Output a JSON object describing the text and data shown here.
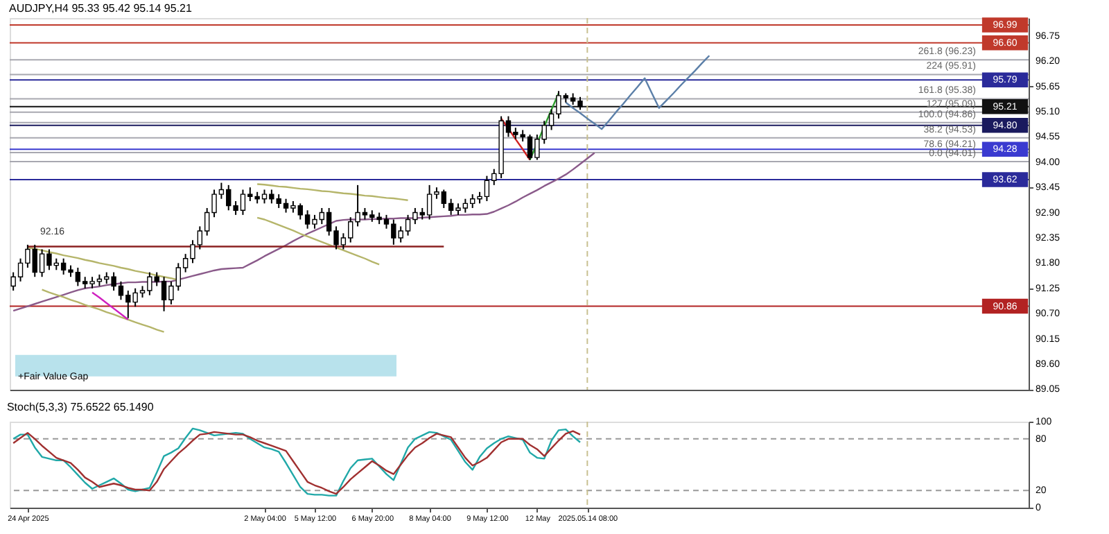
{
  "chart_data": [
    {
      "type": "candlestick",
      "title": "AUDJPY,H4  95.33 95.42 95.14 95.21",
      "categories": [
        null,
        null,
        null,
        null,
        null,
        null,
        null,
        null,
        null,
        null,
        null,
        null,
        null,
        null,
        null,
        null,
        null,
        null,
        null,
        null,
        null,
        null,
        null,
        null,
        null,
        null,
        null,
        null,
        null,
        null,
        null,
        null,
        null,
        null,
        null,
        null,
        null,
        null,
        null,
        null,
        null,
        null,
        null,
        null,
        null,
        null,
        null,
        null,
        null,
        null,
        null,
        null,
        null,
        null,
        null,
        null,
        null,
        null,
        null,
        null,
        null,
        null,
        null,
        null,
        null,
        null,
        null,
        null,
        null,
        null,
        null,
        null,
        null,
        null,
        null,
        null,
        null,
        null,
        null,
        null,
        null,
        null,
        null,
        null,
        null,
        null,
        null,
        null,
        null,
        null,
        null,
        null,
        null,
        null,
        null,
        null,
        null,
        null
      ],
      "ohlc": [
        [
          91.3,
          91.6,
          91.2,
          91.5
        ],
        [
          91.5,
          91.9,
          91.4,
          91.8
        ],
        [
          91.8,
          92.2,
          91.7,
          92.1
        ],
        [
          92.1,
          92.2,
          91.5,
          91.6
        ],
        [
          91.6,
          92.1,
          91.5,
          92.0
        ],
        [
          92.0,
          92.1,
          91.65,
          91.75
        ],
        [
          91.75,
          91.9,
          91.65,
          91.8
        ],
        [
          91.8,
          91.9,
          91.55,
          91.65
        ],
        [
          91.65,
          91.75,
          91.5,
          91.6
        ],
        [
          91.6,
          91.7,
          91.3,
          91.4
        ],
        [
          91.4,
          91.5,
          91.25,
          91.35
        ],
        [
          91.35,
          91.5,
          91.25,
          91.4
        ],
        [
          91.4,
          91.55,
          91.3,
          91.45
        ],
        [
          91.45,
          91.6,
          91.35,
          91.5
        ],
        [
          91.5,
          91.6,
          91.2,
          91.3
        ],
        [
          91.3,
          91.4,
          91.0,
          91.1
        ],
        [
          91.1,
          91.2,
          90.6,
          90.95
        ],
        [
          90.95,
          91.25,
          90.85,
          91.15
        ],
        [
          91.15,
          91.3,
          91.05,
          91.2
        ],
        [
          91.2,
          91.6,
          91.1,
          91.5
        ],
        [
          91.5,
          91.6,
          91.3,
          91.4
        ],
        [
          91.4,
          91.5,
          90.75,
          91.0
        ],
        [
          91.0,
          91.4,
          90.9,
          91.3
        ],
        [
          91.3,
          91.8,
          91.2,
          91.7
        ],
        [
          91.7,
          92.0,
          91.6,
          91.9
        ],
        [
          91.9,
          92.3,
          91.8,
          92.2
        ],
        [
          92.2,
          92.6,
          92.1,
          92.5
        ],
        [
          92.5,
          93.0,
          92.4,
          92.9
        ],
        [
          92.9,
          93.4,
          92.8,
          93.3
        ],
        [
          93.3,
          93.55,
          93.2,
          93.4
        ],
        [
          93.4,
          93.5,
          92.95,
          93.05
        ],
        [
          93.05,
          93.15,
          92.85,
          92.95
        ],
        [
          92.95,
          93.4,
          92.85,
          93.3
        ],
        [
          93.3,
          93.45,
          93.15,
          93.25
        ],
        [
          93.25,
          93.35,
          93.1,
          93.2
        ],
        [
          93.2,
          93.4,
          93.1,
          93.3
        ],
        [
          93.3,
          93.4,
          93.1,
          93.2
        ],
        [
          93.2,
          93.3,
          93.0,
          93.1
        ],
        [
          93.1,
          93.2,
          92.9,
          93.0
        ],
        [
          93.0,
          93.15,
          92.9,
          93.05
        ],
        [
          93.05,
          93.1,
          92.75,
          92.85
        ],
        [
          92.85,
          92.95,
          92.55,
          92.65
        ],
        [
          92.65,
          92.85,
          92.55,
          92.75
        ],
        [
          92.75,
          93.0,
          92.65,
          92.9
        ],
        [
          92.9,
          93.0,
          92.4,
          92.5
        ],
        [
          92.5,
          92.6,
          92.1,
          92.2
        ],
        [
          92.2,
          92.45,
          92.1,
          92.35
        ],
        [
          92.35,
          92.8,
          92.25,
          92.7
        ],
        [
          92.7,
          93.5,
          92.6,
          92.9
        ],
        [
          92.9,
          93.0,
          92.75,
          92.85
        ],
        [
          92.85,
          92.95,
          92.7,
          92.8
        ],
        [
          92.8,
          92.9,
          92.65,
          92.75
        ],
        [
          92.75,
          92.85,
          92.55,
          92.65
        ],
        [
          92.65,
          92.75,
          92.2,
          92.35
        ],
        [
          92.35,
          92.6,
          92.25,
          92.5
        ],
        [
          92.5,
          92.85,
          92.4,
          92.75
        ],
        [
          92.75,
          93.0,
          92.65,
          92.9
        ],
        [
          92.9,
          93.0,
          92.75,
          92.85
        ],
        [
          92.85,
          93.5,
          92.75,
          93.3
        ],
        [
          93.3,
          93.45,
          93.2,
          93.35
        ],
        [
          93.35,
          93.4,
          93.0,
          93.1
        ],
        [
          93.1,
          93.2,
          92.85,
          92.95
        ],
        [
          92.95,
          93.1,
          92.85,
          93.0
        ],
        [
          93.0,
          93.2,
          92.9,
          93.1
        ],
        [
          93.1,
          93.3,
          93.0,
          93.2
        ],
        [
          93.2,
          93.35,
          93.1,
          93.25
        ],
        [
          93.25,
          93.7,
          93.15,
          93.6
        ],
        [
          93.6,
          93.85,
          93.5,
          93.75
        ],
        [
          93.75,
          95.0,
          93.65,
          94.9
        ],
        [
          94.9,
          95.0,
          94.55,
          94.65
        ],
        [
          94.65,
          94.75,
          94.5,
          94.6
        ],
        [
          94.6,
          94.7,
          94.45,
          94.55
        ],
        [
          94.55,
          94.6,
          94.05,
          94.1
        ],
        [
          94.1,
          94.6,
          94.05,
          94.5
        ],
        [
          94.5,
          94.9,
          94.4,
          94.8
        ],
        [
          94.8,
          95.15,
          94.7,
          95.05
        ],
        [
          95.05,
          95.55,
          94.95,
          95.45
        ],
        [
          95.45,
          95.5,
          95.3,
          95.4
        ],
        [
          95.4,
          95.5,
          95.25,
          95.33
        ],
        [
          95.33,
          95.42,
          95.14,
          95.21
        ],
        null,
        null,
        null,
        null,
        null,
        null,
        null,
        null,
        null,
        null,
        null,
        null,
        null,
        null,
        null,
        null,
        null,
        null
      ],
      "colors": [
        "#ffffff",
        "#ffffff",
        "#ffffff",
        "#000000",
        "#ffffff",
        "#000000",
        "#ffffff",
        "#000000",
        "#000000",
        "#000000",
        "#000000",
        "#ffffff",
        "#ffffff",
        "#ffffff",
        "#000000",
        "#000000",
        "#000000",
        "#ffffff",
        "#ffffff",
        "#ffffff",
        "#000000",
        "#000000",
        "#ffffff",
        "#ffffff",
        "#ffffff",
        "#ffffff",
        "#ffffff",
        "#ffffff",
        "#ffffff",
        "#ffffff",
        "#000000",
        "#000000",
        "#ffffff",
        "#000000",
        "#000000",
        "#ffffff",
        "#000000",
        "#000000",
        "#000000",
        "#ffffff",
        "#000000",
        "#000000",
        "#ffffff",
        "#ffffff",
        "#000000",
        "#000000",
        "#ffffff",
        "#ffffff",
        "#ffffff",
        "#000000",
        "#000000",
        "#000000",
        "#000000",
        "#000000",
        "#ffffff",
        "#ffffff",
        "#ffffff",
        "#000000",
        "#ffffff",
        "#ffffff",
        "#000000",
        "#000000",
        "#ffffff",
        "#ffffff",
        "#ffffff",
        "#ffffff",
        "#ffffff",
        "#ffffff",
        "#ffffff",
        "#000000",
        "#000000",
        "#000000",
        "#000000",
        "#ffffff",
        "#ffffff",
        "#ffffff",
        "#ffffff",
        "#000000",
        "#000000",
        "#000000",
        null,
        null,
        null,
        null,
        null,
        null,
        null,
        null,
        null,
        null,
        null,
        null,
        null,
        null,
        null,
        null,
        null,
        null
      ],
      "series": [
        {
          "type": "line",
          "color": "#8a5a8a",
          "values": [
            90.76,
            90.81,
            90.86,
            90.91,
            90.96,
            91.01,
            91.06,
            91.11,
            91.16,
            91.21,
            91.25,
            91.27,
            91.29,
            91.32,
            91.34,
            91.36,
            91.38,
            91.38,
            91.39,
            91.39,
            91.39,
            91.4,
            91.4,
            91.44,
            91.48,
            91.52,
            91.56,
            91.6,
            91.64,
            91.67,
            91.68,
            91.69,
            91.7,
            91.78,
            91.86,
            91.95,
            92.03,
            92.11,
            92.19,
            92.28,
            92.36,
            92.44,
            92.51,
            92.58,
            92.65,
            92.72,
            92.74,
            92.75,
            92.75,
            92.75,
            92.76,
            92.76,
            92.77,
            92.77,
            92.78,
            92.78,
            92.78,
            92.79,
            92.8,
            92.81,
            92.82,
            92.83,
            92.85,
            92.85,
            92.86,
            92.86,
            92.87,
            92.92,
            92.99,
            93.06,
            93.14,
            93.23,
            93.31,
            93.39,
            93.48,
            93.56,
            93.64,
            93.73,
            93.84,
            93.96,
            94.08,
            94.2,
            null,
            null,
            null,
            null,
            null,
            null,
            null,
            null,
            null,
            null,
            null,
            null,
            null,
            null,
            null,
            null
          ]
        },
        {
          "type": "line",
          "color": "#b5b56a",
          "values": [
            null,
            null,
            92.14,
            92.11,
            92.08,
            92.04,
            92.01,
            91.97,
            91.94,
            91.91,
            91.87,
            91.84,
            91.8,
            91.77,
            91.74,
            91.7,
            91.67,
            91.63,
            91.6,
            91.57,
            91.53,
            91.5,
            91.47,
            91.43,
            null,
            null,
            null,
            null,
            null,
            null,
            null,
            null,
            null,
            null,
            null,
            null,
            null,
            null,
            null,
            null,
            null,
            null,
            null,
            null,
            null,
            null,
            null,
            null,
            null,
            null,
            null,
            null,
            null,
            null,
            null,
            null,
            null,
            null,
            null,
            null,
            null,
            null,
            null,
            null,
            null,
            null,
            null,
            null,
            null,
            null,
            null,
            null,
            null,
            null,
            null,
            null,
            null,
            null,
            null,
            null,
            null,
            null,
            null,
            null,
            null,
            null,
            null,
            null,
            null,
            null,
            null,
            null,
            null,
            null,
            null,
            null,
            null,
            null
          ]
        },
        {
          "type": "line",
          "color": "#b5b56a",
          "values": [
            null,
            null,
            null,
            null,
            91.22,
            91.16,
            91.11,
            91.06,
            91.0,
            90.95,
            90.89,
            90.84,
            90.79,
            90.73,
            90.68,
            90.62,
            90.57,
            90.51,
            90.46,
            90.41,
            90.35,
            90.3,
            null,
            null,
            null,
            null,
            null,
            null,
            null,
            null,
            null,
            null,
            null,
            null,
            null,
            null,
            null,
            null,
            null,
            null,
            null,
            null,
            null,
            null,
            null,
            null,
            null,
            null,
            null,
            null,
            null,
            null,
            null,
            null,
            null,
            null,
            null,
            null,
            null,
            null,
            null,
            null,
            null,
            null,
            null,
            null,
            null,
            null,
            null,
            null,
            null,
            null,
            null,
            null,
            null,
            null,
            null,
            null,
            null,
            null,
            null,
            null,
            null,
            null,
            null,
            null,
            null,
            null,
            null,
            null,
            null,
            null,
            null,
            null,
            null,
            null,
            null,
            null
          ]
        },
        {
          "type": "line",
          "color": "#d020c0",
          "values": [
            null,
            null,
            null,
            null,
            null,
            null,
            null,
            null,
            null,
            null,
            null,
            91.16,
            91.05,
            90.93,
            90.81,
            90.69,
            90.57,
            null,
            null,
            null,
            null,
            null,
            null,
            null,
            null,
            null,
            null,
            null,
            null,
            null,
            null,
            null,
            null,
            null,
            null,
            null,
            null,
            null,
            null,
            null,
            null,
            null,
            null,
            null,
            null,
            null,
            null,
            null,
            null,
            null,
            null,
            null,
            null,
            null,
            null,
            null,
            null,
            null,
            null,
            null,
            null,
            null,
            null,
            null,
            null,
            null,
            null,
            null,
            null,
            null,
            null,
            null,
            null,
            null,
            null,
            null,
            null,
            null,
            null,
            null,
            null,
            null,
            null,
            null,
            null,
            null,
            null,
            null,
            null,
            null,
            null,
            null,
            null,
            null,
            null,
            null,
            null,
            null
          ]
        },
        {
          "type": "line",
          "color": "#b5b56a",
          "values": [
            null,
            null,
            null,
            null,
            null,
            null,
            null,
            null,
            null,
            null,
            null,
            null,
            null,
            null,
            null,
            null,
            null,
            null,
            null,
            null,
            null,
            null,
            null,
            null,
            null,
            null,
            null,
            null,
            null,
            null,
            null,
            null,
            null,
            null,
            93.52,
            93.51,
            93.49,
            93.47,
            93.46,
            93.44,
            93.42,
            93.41,
            93.39,
            93.37,
            93.36,
            93.34,
            93.32,
            93.31,
            93.29,
            93.27,
            93.26,
            93.24,
            93.22,
            93.21,
            93.19,
            93.17,
            null,
            null,
            null,
            null,
            null,
            null,
            null,
            null,
            null,
            null,
            null,
            null,
            null,
            null,
            null,
            null,
            null,
            null,
            null,
            null,
            null,
            null,
            null,
            null,
            null,
            null,
            null,
            null,
            null,
            null,
            null,
            null,
            null,
            null,
            null,
            null,
            null,
            null,
            null,
            null,
            null,
            null
          ]
        },
        {
          "type": "line",
          "color": "#b5b56a",
          "values": [
            null,
            null,
            null,
            null,
            null,
            null,
            null,
            null,
            null,
            null,
            null,
            null,
            null,
            null,
            null,
            null,
            null,
            null,
            null,
            null,
            null,
            null,
            null,
            null,
            null,
            null,
            null,
            null,
            null,
            null,
            null,
            null,
            null,
            null,
            92.79,
            92.75,
            92.69,
            92.63,
            92.57,
            92.51,
            92.44,
            92.38,
            92.32,
            92.26,
            92.2,
            92.14,
            92.08,
            92.02,
            91.96,
            91.9,
            91.83,
            91.77,
            null,
            null,
            null,
            null,
            null,
            null,
            null,
            null,
            null,
            null,
            null,
            null,
            null,
            null,
            null,
            null,
            null,
            null,
            null,
            null,
            null,
            null,
            null,
            null,
            null,
            null,
            null,
            null,
            null,
            null,
            null,
            null,
            null,
            null,
            null,
            null,
            null,
            null,
            null,
            null,
            null,
            null,
            null,
            null,
            null,
            null
          ]
        },
        {
          "type": "line",
          "color": "#8b2020",
          "values": [
            null,
            null,
            92.16,
            92.16,
            92.16,
            92.16,
            92.16,
            92.16,
            92.16,
            92.16,
            92.16,
            92.16,
            92.16,
            92.16,
            92.16,
            92.16,
            92.16,
            92.16,
            92.16,
            92.16,
            92.16,
            92.16,
            92.16,
            92.16,
            92.16,
            92.16,
            92.16,
            92.16,
            92.16,
            92.16,
            92.16,
            92.16,
            92.16,
            92.16,
            92.16,
            92.16,
            92.16,
            92.16,
            92.16,
            92.16,
            92.16,
            92.16,
            92.16,
            92.16,
            92.16,
            92.16,
            92.16,
            92.16,
            92.16,
            92.16,
            92.16,
            92.16,
            92.16,
            92.16,
            92.16,
            92.16,
            92.16,
            92.16,
            92.16,
            92.16,
            92.16,
            null,
            null,
            null,
            null,
            null,
            null,
            null,
            null,
            null,
            null,
            null,
            null,
            null,
            null,
            null,
            null,
            null,
            null,
            null,
            null,
            null,
            null,
            null,
            null,
            null,
            null,
            null,
            null,
            null,
            null,
            null,
            null,
            null,
            null,
            null,
            null,
            null
          ]
        },
        {
          "type": "line",
          "color": "#d02020",
          "values": [
            null,
            null,
            null,
            null,
            null,
            null,
            null,
            null,
            null,
            null,
            null,
            null,
            null,
            null,
            null,
            null,
            null,
            null,
            null,
            null,
            null,
            null,
            null,
            null,
            null,
            null,
            null,
            null,
            null,
            null,
            null,
            null,
            null,
            null,
            null,
            null,
            null,
            null,
            null,
            null,
            null,
            null,
            null,
            null,
            null,
            null,
            null,
            null,
            null,
            null,
            null,
            null,
            null,
            null,
            null,
            null,
            null,
            null,
            null,
            null,
            null,
            null,
            null,
            null,
            null,
            null,
            null,
            null,
            94.95,
            94.73,
            94.5,
            94.28,
            94.05,
            null,
            null,
            null,
            null,
            null,
            null,
            null,
            null,
            null,
            null,
            null,
            null,
            null,
            null,
            null,
            null,
            null,
            null,
            null,
            null,
            null,
            null,
            null,
            null,
            null
          ]
        },
        {
          "type": "line",
          "color": "#30a030",
          "values": [
            null,
            null,
            null,
            null,
            null,
            null,
            null,
            null,
            null,
            null,
            null,
            null,
            null,
            null,
            null,
            null,
            null,
            null,
            null,
            null,
            null,
            null,
            null,
            null,
            null,
            null,
            null,
            null,
            null,
            null,
            null,
            null,
            null,
            null,
            null,
            null,
            null,
            null,
            null,
            null,
            null,
            null,
            null,
            null,
            null,
            null,
            null,
            null,
            null,
            null,
            null,
            null,
            null,
            null,
            null,
            null,
            null,
            null,
            null,
            null,
            null,
            null,
            null,
            null,
            null,
            null,
            null,
            null,
            null,
            null,
            null,
            null,
            94.05,
            94.41,
            94.78,
            95.14,
            95.5,
            null,
            null,
            null,
            null,
            null,
            null,
            null,
            null,
            null,
            null,
            null,
            null,
            null,
            null,
            null,
            null,
            null,
            null,
            null,
            null,
            null
          ]
        },
        {
          "type": "line",
          "color": "#5b7fa8",
          "values": [
            null,
            null,
            null,
            null,
            null,
            null,
            null,
            null,
            null,
            null,
            null,
            null,
            null,
            null,
            null,
            null,
            null,
            null,
            null,
            null,
            null,
            null,
            null,
            null,
            null,
            null,
            null,
            null,
            null,
            null,
            null,
            null,
            null,
            null,
            null,
            null,
            null,
            null,
            null,
            null,
            null,
            null,
            null,
            null,
            null,
            null,
            null,
            null,
            null,
            null,
            null,
            null,
            null,
            null,
            null,
            null,
            null,
            null,
            null,
            null,
            null,
            null,
            null,
            null,
            null,
            null,
            null,
            null,
            null,
            null,
            null,
            null,
            null,
            null,
            null,
            null,
            null,
            95.3,
            95.18,
            95.07,
            94.95,
            94.84,
            94.72,
            94.9,
            95.09,
            95.27,
            95.46,
            95.64,
            95.83,
            95.5,
            95.18,
            95.34,
            95.5,
            95.67,
            95.83,
            95.99,
            96.16,
            96.32
          ]
        }
      ],
      "ylim": [
        89.04,
        97.14
      ],
      "yticks": [
        {
          "value": 96.75,
          "label": "96.75"
        },
        {
          "value": 96.2,
          "label": "96.20"
        },
        {
          "value": 95.65,
          "label": "95.65"
        },
        {
          "value": 95.1,
          "label": "95.10"
        },
        {
          "value": 94.55,
          "label": "94.55"
        },
        {
          "value": 94.0,
          "label": "94.00"
        },
        {
          "value": 93.45,
          "label": "93.45"
        },
        {
          "value": 92.9,
          "label": "92.90"
        },
        {
          "value": 92.35,
          "label": "92.35"
        },
        {
          "value": 91.8,
          "label": "91.80"
        },
        {
          "value": 91.25,
          "label": "91.25"
        },
        {
          "value": 90.7,
          "label": "90.70"
        },
        {
          "value": 90.15,
          "label": "90.15"
        },
        {
          "value": 89.6,
          "label": "89.60"
        },
        {
          "value": 89.05,
          "label": "89.05"
        }
      ],
      "tick_labels": "y",
      "ref_lines": [
        {
          "axis": "y",
          "value": 96.99,
          "label": "96.99",
          "color": "#c0392b"
        },
        {
          "axis": "y",
          "value": 96.6,
          "label": "96.60",
          "color": "#c0392b"
        },
        {
          "axis": "y",
          "value": 95.79,
          "label": "95.79",
          "color": "#2a2a9a"
        },
        {
          "axis": "y",
          "value": 95.21,
          "label": "95.21",
          "color": "#111111"
        },
        {
          "axis": "y",
          "value": 94.8,
          "label": "94.80",
          "color": "#1a1a5e"
        },
        {
          "axis": "y",
          "value": 94.28,
          "label": "94.28",
          "color": "#3a3ad0"
        },
        {
          "axis": "y",
          "value": 93.62,
          "label": "93.62",
          "color": "#2a2a9a"
        },
        {
          "axis": "y",
          "value": 90.86,
          "label": "90.86",
          "color": "#b22222"
        },
        {
          "axis": "y",
          "value": 96.23,
          "color": "#a8a8b0"
        },
        {
          "axis": "y",
          "value": 95.91,
          "color": "#a8a8b0"
        },
        {
          "axis": "y",
          "value": 95.38,
          "color": "#a8a8b0"
        },
        {
          "axis": "y",
          "value": 95.09,
          "color": "#a8a8b0"
        },
        {
          "axis": "y",
          "value": 94.86,
          "color": "#a8a8b0"
        },
        {
          "axis": "y",
          "value": 94.53,
          "color": "#a8a8b0"
        },
        {
          "axis": "y",
          "value": 94.21,
          "color": "#a8a8b0"
        },
        {
          "axis": "y",
          "value": 94.01,
          "color": "#a8a8b0"
        }
      ],
      "bands": [
        {
          "axis": "y",
          "from": 89.33,
          "to": 89.8,
          "label": "+Fair Value Gap",
          "color": "#b8e2ec"
        }
      ],
      "annotations": [
        {
          "text": "92.16",
          "y": 92.3
        },
        {
          "text": "261.8 (96.23)",
          "y": 96.23
        },
        {
          "text": "224 (95.91)",
          "y": 95.91
        },
        {
          "text": "161.8 (95.38)",
          "y": 95.38
        },
        {
          "text": "127 (95.09)",
          "y": 95.09
        },
        {
          "text": "100.0 (94.86)",
          "y": 94.86
        },
        {
          "text": "38.2 (94.53)",
          "y": 94.53
        },
        {
          "text": "78.6 (94.21)",
          "y": 94.21
        },
        {
          "text": "0.0 (94.01)",
          "y": 94.01
        }
      ]
    },
    {
      "type": "line",
      "title": "Stoch(5,3,3) 75.6522 65.1490",
      "categories": [
        null,
        null,
        "24 Apr 2025",
        null,
        null,
        null,
        null,
        null,
        null,
        null,
        null,
        null,
        null,
        null,
        null,
        null,
        null,
        null,
        null,
        null,
        null,
        null,
        null,
        null,
        null,
        null,
        null,
        null,
        null,
        null,
        null,
        null,
        null,
        null,
        null,
        "2 May 04:00",
        null,
        null,
        null,
        null,
        null,
        null,
        "5 May 12:00",
        null,
        null,
        null,
        null,
        null,
        null,
        null,
        "6 May 20:00",
        null,
        null,
        null,
        null,
        null,
        null,
        null,
        "8 May 04:00",
        null,
        null,
        null,
        null,
        null,
        null,
        null,
        "9 May 12:00",
        null,
        null,
        null,
        null,
        null,
        null,
        "12 May",
        null,
        null,
        null,
        null,
        null,
        null,
        "2025.05.14 08:00",
        null,
        null,
        null,
        null,
        null,
        null,
        null,
        null,
        null,
        null,
        null,
        null,
        null,
        null,
        null,
        null,
        null
      ],
      "series": [
        {
          "color": "#20a8a8",
          "values": [
            80,
            85,
            85,
            70,
            59,
            57,
            55,
            55,
            47,
            38,
            29,
            22,
            26,
            30,
            34,
            28,
            21,
            19,
            21,
            23,
            41,
            60,
            64,
            69,
            81,
            92,
            90,
            87,
            84,
            85,
            86,
            87,
            86,
            80,
            75,
            70,
            68,
            65,
            52,
            38,
            24,
            16,
            15,
            15,
            14,
            14,
            31,
            46,
            55,
            56,
            57,
            48,
            39,
            32,
            51,
            70,
            80,
            84,
            88,
            87,
            83,
            79,
            66,
            53,
            44,
            59,
            69,
            75,
            80,
            83,
            81,
            79,
            64,
            58,
            57,
            78,
            90,
            91,
            83,
            76,
            null,
            null,
            null,
            null,
            null,
            null,
            null,
            null,
            null,
            null,
            null,
            null,
            null,
            null,
            null,
            null,
            null,
            null
          ]
        },
        {
          "color": "#a03030",
          "values": [
            75,
            81,
            87,
            80,
            72,
            65,
            58,
            55,
            52,
            44,
            35,
            30,
            24,
            26,
            28,
            26,
            23,
            21,
            21,
            20,
            30,
            45,
            54,
            63,
            70,
            78,
            85,
            86,
            88,
            87,
            86,
            85,
            85,
            82,
            78,
            75,
            72,
            69,
            66,
            54,
            42,
            30,
            26,
            23,
            19,
            16,
            24,
            33,
            40,
            47,
            54,
            49,
            43,
            39,
            50,
            61,
            70,
            75,
            81,
            86,
            84,
            82,
            70,
            58,
            49,
            53,
            58,
            67,
            76,
            80,
            80,
            80,
            73,
            68,
            60,
            69,
            78,
            86,
            89,
            85,
            null,
            null,
            null,
            null,
            null,
            null,
            null,
            null,
            null,
            null,
            null,
            null,
            null,
            null,
            null,
            null,
            null,
            null
          ]
        }
      ],
      "ylim": [
        0,
        100
      ],
      "yticks": [
        100,
        80,
        20,
        0
      ],
      "ref_lines": [
        {
          "axis": "y",
          "value": 80,
          "color": "#999999",
          "line_style": "dashed"
        },
        {
          "axis": "y",
          "value": 20,
          "color": "#999999",
          "line_style": "dashed"
        },
        {
          "axis": "x",
          "value": "2025.05.14 08:00",
          "color": "#c8c090",
          "line_style": "dashed"
        }
      ]
    }
  ]
}
